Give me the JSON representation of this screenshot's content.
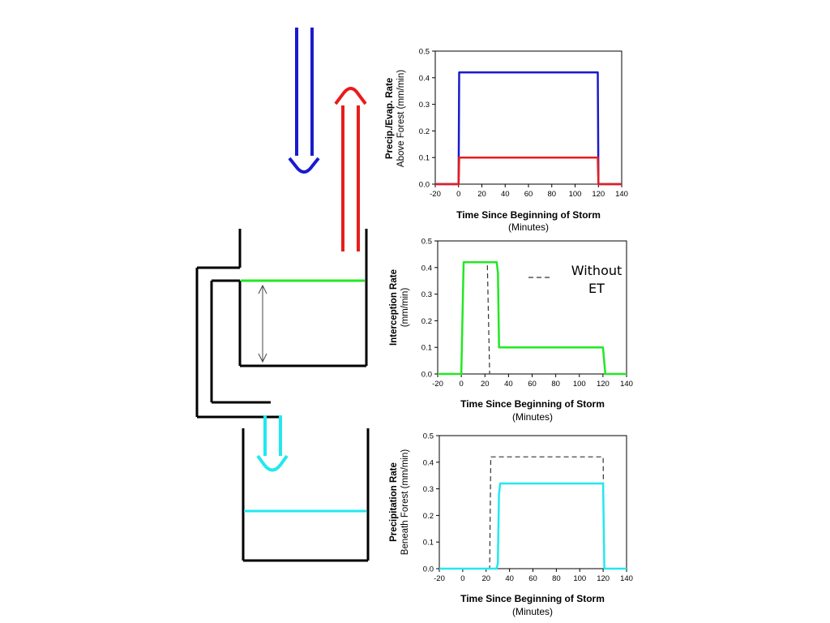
{
  "colors": {
    "precipitation": "#1a1acc",
    "evaporation": "#e81c1c",
    "interception": "#22e822",
    "throughfall": "#22e8f0",
    "without_et": "#333333",
    "structure": "#000000"
  },
  "diagram": {
    "precipitation_arrow_icon": "arrow-down",
    "evaporation_arrow_icon": "arrow-up",
    "throughfall_arrow_icon": "arrow-down",
    "storage_depth_icon": "double-headed-arrow"
  },
  "legend_note": {
    "line1": "Without",
    "line2": "ET"
  },
  "chart_data": [
    {
      "type": "line",
      "title": "",
      "ylabel_bold": "Precip./Evap. Rate",
      "ylabel_sub": "Above Forest (mm/min)",
      "xlabel": "Time Since Beginning of Storm",
      "xlabel_sub": "(Minutes)",
      "xlim": [
        -20,
        140
      ],
      "ylim": [
        0,
        0.5
      ],
      "xticks": [
        "-20",
        "0",
        "20",
        "40",
        "60",
        "80",
        "100",
        "120",
        "140"
      ],
      "yticks": [
        "0.0",
        "0.1",
        "0.2",
        "0.3",
        "0.4",
        "0.5"
      ],
      "series": [
        {
          "color": "#1a1acc",
          "dashed": false,
          "x": [
            -20,
            0,
            0.5,
            119.5,
            120,
            140
          ],
          "y": [
            0,
            0,
            0.42,
            0.42,
            0,
            0
          ]
        },
        {
          "color": "#e81c1c",
          "dashed": false,
          "x": [
            -20,
            0,
            0.5,
            119.5,
            120,
            140
          ],
          "y": [
            0,
            0,
            0.1,
            0.1,
            0,
            0
          ]
        }
      ]
    },
    {
      "type": "line",
      "title": "",
      "ylabel_bold": "Interception Rate",
      "ylabel_sub": "(mm/min)",
      "xlabel": "Time Since Beginning of Storm",
      "xlabel_sub": "(Minutes)",
      "xlim": [
        -20,
        140
      ],
      "ylim": [
        0,
        0.5
      ],
      "xticks": [
        "-20",
        "0",
        "20",
        "40",
        "60",
        "80",
        "100",
        "120",
        "140"
      ],
      "yticks": [
        "0.0",
        "0.1",
        "0.2",
        "0.3",
        "0.4",
        "0.5"
      ],
      "series": [
        {
          "color": "#22e822",
          "dashed": false,
          "x": [
            -20,
            0,
            2,
            30,
            31,
            32,
            120,
            122,
            140
          ],
          "y": [
            0,
            0,
            0.42,
            0.42,
            0.38,
            0.1,
            0.1,
            0,
            0
          ]
        },
        {
          "color": "#333333",
          "dashed": true,
          "x": [
            -20,
            0,
            2,
            22,
            24,
            140
          ],
          "y": [
            0,
            0,
            0.42,
            0.42,
            0,
            0
          ]
        }
      ]
    },
    {
      "type": "line",
      "title": "",
      "ylabel_bold": "Precipitation Rate",
      "ylabel_sub": "Beneath Forest (mm/min)",
      "xlabel": "Time Since Beginning of Storm",
      "xlabel_sub": "(Minutes)",
      "xlim": [
        -20,
        140
      ],
      "ylim": [
        0,
        0.5
      ],
      "xticks": [
        "-20",
        "0",
        "20",
        "40",
        "60",
        "80",
        "100",
        "120",
        "140"
      ],
      "yticks": [
        "0.0",
        "0.1",
        "0.2",
        "0.3",
        "0.4",
        "0.5"
      ],
      "series": [
        {
          "color": "#22e8f0",
          "dashed": false,
          "x": [
            -20,
            29,
            30,
            31,
            32,
            120,
            121,
            140
          ],
          "y": [
            0,
            0,
            0.02,
            0.28,
            0.32,
            0.32,
            0,
            0
          ]
        },
        {
          "color": "#333333",
          "dashed": true,
          "x": [
            -20,
            23,
            24,
            120,
            121,
            140
          ],
          "y": [
            0,
            0,
            0.42,
            0.42,
            0,
            0
          ]
        }
      ]
    }
  ]
}
